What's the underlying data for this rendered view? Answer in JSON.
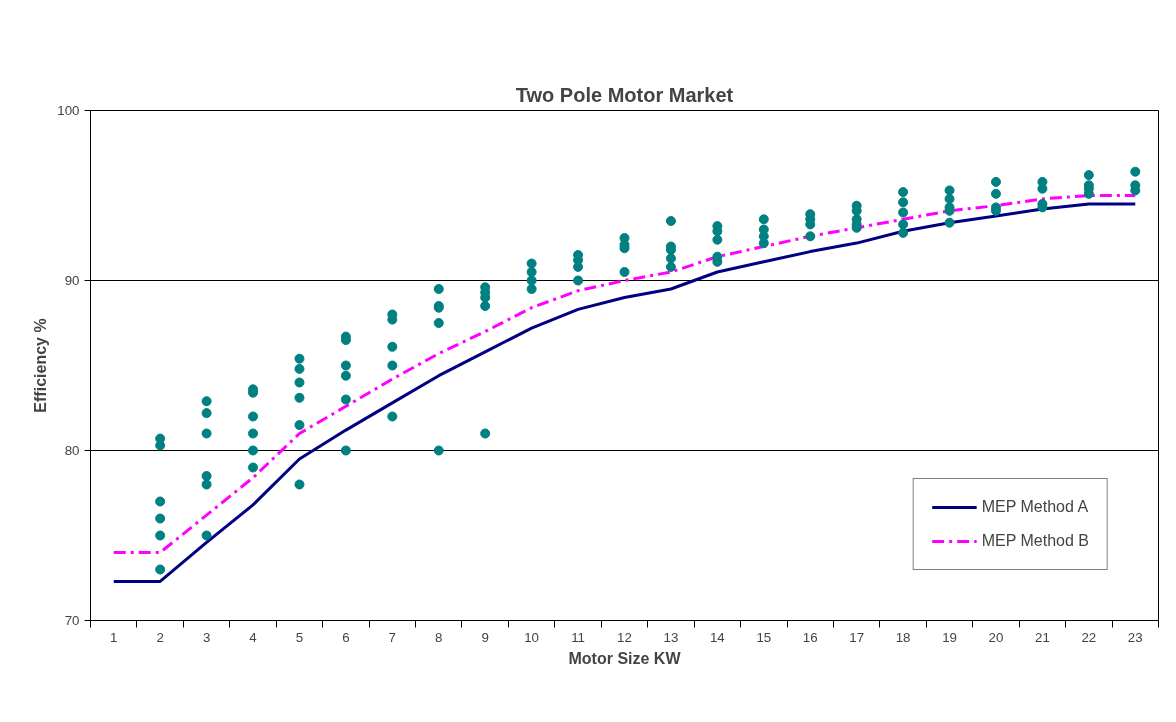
{
  "chart_data": {
    "type": "line",
    "title": "Two Pole Motor Market",
    "xlabel": "Motor Size KW",
    "ylabel": "Efficiency %",
    "categories": [
      "1",
      "2",
      "3",
      "4",
      "5",
      "6",
      "7",
      "8",
      "9",
      "10",
      "11",
      "12",
      "13",
      "14",
      "15",
      "16",
      "17",
      "18",
      "19",
      "20",
      "21",
      "22",
      "23"
    ],
    "ylim": [
      70,
      100
    ],
    "yticks": [
      70,
      80,
      90,
      100
    ],
    "grid": "y",
    "legend": "bottom right",
    "series": [
      {
        "name": "MEP Method A",
        "color": "#000080",
        "line_style": "solid",
        "marker": "none",
        "values": [
          72.3,
          72.3,
          74.6,
          76.8,
          79.5,
          81.2,
          82.8,
          84.4,
          85.8,
          87.2,
          88.3,
          89.0,
          89.5,
          90.5,
          91.1,
          91.7,
          92.2,
          92.9,
          93.4,
          93.8,
          94.2,
          94.5,
          94.5
        ]
      },
      {
        "name": "MEP Method B",
        "color": "#ff00ff",
        "line_style": "dashed",
        "marker": "none",
        "values": [
          74,
          74,
          76.2,
          78.4,
          81,
          82.6,
          84.2,
          85.7,
          87,
          88.4,
          89.4,
          90,
          90.5,
          91.4,
          92,
          92.6,
          93.1,
          93.6,
          94.1,
          94.4,
          94.8,
          95,
          95
        ]
      },
      {
        "type": "scatter",
        "color": "#008080",
        "marker": "circle",
        "x": [
          "2",
          "2",
          "2",
          "2",
          "2",
          "2",
          "3",
          "3",
          "3",
          "3",
          "3",
          "3",
          "4",
          "4",
          "4",
          "4",
          "4",
          "4",
          "5",
          "5",
          "5",
          "5",
          "5",
          "5",
          "6",
          "6",
          "6",
          "6",
          "6",
          "6",
          "7",
          "7",
          "7",
          "7",
          "7",
          "8",
          "8",
          "8",
          "8",
          "8",
          "9",
          "9",
          "9",
          "9",
          "9",
          "10",
          "10",
          "10",
          "10",
          "11",
          "11",
          "11",
          "11",
          "12",
          "12",
          "12",
          "12",
          "13",
          "13",
          "13",
          "13",
          "13",
          "14",
          "14",
          "14",
          "14",
          "14",
          "15",
          "15",
          "15",
          "15",
          "16",
          "16",
          "16",
          "16",
          "17",
          "17",
          "17",
          "17",
          "17",
          "18",
          "18",
          "18",
          "18",
          "18",
          "19",
          "19",
          "19",
          "19",
          "19",
          "20",
          "20",
          "20",
          "20",
          "21",
          "21",
          "21",
          "21",
          "22",
          "22",
          "22",
          "22",
          "23",
          "23",
          "23"
        ],
        "values": [
          80.7,
          80.3,
          77,
          76,
          75,
          73,
          82.9,
          82.2,
          81,
          78.5,
          78,
          75,
          83.6,
          83.4,
          82,
          81,
          80,
          79,
          85.4,
          84.8,
          84,
          83.1,
          81.5,
          78,
          86.7,
          86.5,
          85,
          84.4,
          83,
          80,
          88,
          87.7,
          86.1,
          85,
          82,
          89.5,
          88.5,
          88.4,
          87.5,
          80,
          89.6,
          89.3,
          89,
          88.5,
          81,
          91,
          90.5,
          90,
          89.5,
          91.5,
          91.2,
          90.8,
          90,
          92.5,
          92.1,
          91.9,
          90.5,
          93.5,
          92,
          91.8,
          91.3,
          90.8,
          93.2,
          92.9,
          92.4,
          91.4,
          91.1,
          93.6,
          93,
          92.6,
          92.2,
          93.9,
          93.6,
          93.3,
          92.6,
          94.4,
          94.1,
          93.6,
          93.3,
          93.1,
          95.2,
          94.6,
          94,
          93.3,
          92.8,
          95.3,
          94.8,
          94.3,
          94.1,
          93.4,
          95.8,
          95.1,
          94.3,
          94.1,
          95.8,
          95.4,
          94.5,
          94.3,
          96.2,
          95.6,
          95.4,
          95.1,
          96.4,
          95.6,
          95.3
        ]
      }
    ]
  }
}
